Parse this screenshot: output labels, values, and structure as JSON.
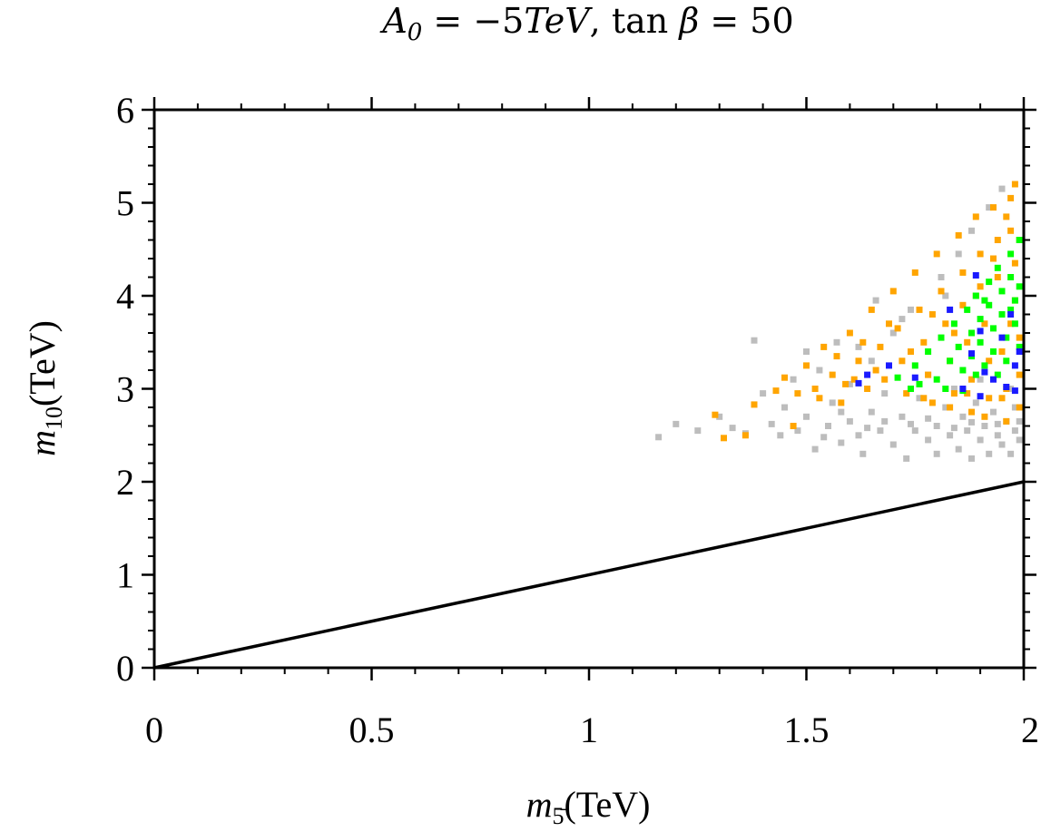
{
  "chart_data": {
    "type": "scatter",
    "title": "A_0 = −5TeV, tan β = 50",
    "title_parts": {
      "lhs": "A",
      "lhs_sub": "0",
      "eq1": " = −5",
      "unit": "TeV",
      "sep": ", ",
      "func": "tan",
      "beta": " β",
      "eq2": " = 50"
    },
    "xlabel": "m_5̄(TeV)",
    "xlabel_parts": {
      "var": "m",
      "sub": "5̄",
      "unit": "(TeV)"
    },
    "ylabel": "m_10(TeV)",
    "ylabel_parts": {
      "var": "m",
      "sub": "10",
      "unit": "(TeV)"
    },
    "xlim": [
      0,
      2
    ],
    "ylim": [
      0,
      6
    ],
    "x_ticks": [
      0,
      0.5,
      1,
      1.5,
      2
    ],
    "x_tick_labels": [
      "0",
      "0.5",
      "1",
      "1.5",
      "2"
    ],
    "y_ticks": [
      0,
      1,
      2,
      3,
      4,
      5,
      6
    ],
    "y_tick_labels": [
      "0",
      "1",
      "2",
      "3",
      "4",
      "5",
      "6"
    ],
    "grid": false,
    "line": {
      "name": "m10 = m5bar",
      "x": [
        0,
        2
      ],
      "y": [
        0,
        2
      ],
      "color": "#000000"
    },
    "series": [
      {
        "name": "gray",
        "color": "#bdbdbd",
        "points": [
          [
            1.16,
            2.48
          ],
          [
            1.2,
            2.62
          ],
          [
            1.25,
            2.55
          ],
          [
            1.3,
            2.7
          ],
          [
            1.33,
            2.58
          ],
          [
            1.36,
            2.52
          ],
          [
            1.38,
            3.52
          ],
          [
            1.4,
            2.95
          ],
          [
            1.42,
            2.62
          ],
          [
            1.45,
            2.8
          ],
          [
            1.47,
            3.1
          ],
          [
            1.48,
            2.55
          ],
          [
            1.5,
            2.7
          ],
          [
            1.52,
            2.35
          ],
          [
            1.53,
            3.2
          ],
          [
            1.55,
            2.6
          ],
          [
            1.56,
            2.85
          ],
          [
            1.58,
            2.42
          ],
          [
            1.6,
            3.05
          ],
          [
            1.6,
            2.65
          ],
          [
            1.62,
            2.5
          ],
          [
            1.63,
            2.3
          ],
          [
            1.65,
            3.3
          ],
          [
            1.65,
            2.75
          ],
          [
            1.67,
            2.55
          ],
          [
            1.68,
            2.95
          ],
          [
            1.7,
            2.4
          ],
          [
            1.7,
            3.6
          ],
          [
            1.72,
            2.7
          ],
          [
            1.73,
            2.25
          ],
          [
            1.74,
            3.85
          ],
          [
            1.75,
            2.55
          ],
          [
            1.76,
            2.9
          ],
          [
            1.78,
            2.45
          ],
          [
            1.78,
            3.15
          ],
          [
            1.8,
            2.6
          ],
          [
            1.8,
            2.3
          ],
          [
            1.81,
            4.2
          ],
          [
            1.82,
            2.8
          ],
          [
            1.83,
            2.5
          ],
          [
            1.84,
            3.0
          ],
          [
            1.85,
            2.35
          ],
          [
            1.85,
            4.45
          ],
          [
            1.86,
            2.7
          ],
          [
            1.87,
            2.55
          ],
          [
            1.88,
            2.25
          ],
          [
            1.88,
            4.7
          ],
          [
            1.89,
            2.85
          ],
          [
            1.9,
            2.45
          ],
          [
            1.9,
            3.1
          ],
          [
            1.91,
            2.6
          ],
          [
            1.92,
            2.3
          ],
          [
            1.92,
            4.95
          ],
          [
            1.93,
            2.75
          ],
          [
            1.94,
            2.5
          ],
          [
            1.95,
            5.15
          ],
          [
            1.95,
            2.4
          ],
          [
            1.96,
            2.65
          ],
          [
            1.97,
            2.3
          ],
          [
            1.97,
            3.0
          ],
          [
            1.98,
            2.55
          ],
          [
            1.98,
            2.8
          ],
          [
            1.99,
            2.45
          ],
          [
            1.99,
            2.65
          ],
          [
            1.44,
            2.5
          ],
          [
            1.54,
            2.48
          ],
          [
            1.64,
            2.58
          ],
          [
            1.74,
            2.62
          ],
          [
            1.84,
            2.58
          ],
          [
            1.94,
            2.62
          ],
          [
            1.58,
            2.75
          ],
          [
            1.68,
            2.65
          ],
          [
            1.78,
            2.68
          ],
          [
            1.88,
            2.64
          ],
          [
            1.62,
            3.45
          ],
          [
            1.72,
            3.75
          ],
          [
            1.82,
            4.0
          ],
          [
            1.5,
            3.4
          ],
          [
            1.57,
            3.5
          ],
          [
            1.66,
            3.95
          ]
        ]
      },
      {
        "name": "orange",
        "color": "#ffa500",
        "points": [
          [
            1.29,
            2.72
          ],
          [
            1.31,
            2.47
          ],
          [
            1.36,
            2.5
          ],
          [
            1.38,
            2.83
          ],
          [
            1.43,
            2.98
          ],
          [
            1.45,
            3.12
          ],
          [
            1.47,
            2.6
          ],
          [
            1.5,
            3.25
          ],
          [
            1.52,
            3.0
          ],
          [
            1.54,
            3.45
          ],
          [
            1.56,
            3.15
          ],
          [
            1.58,
            2.85
          ],
          [
            1.6,
            3.6
          ],
          [
            1.62,
            3.3
          ],
          [
            1.64,
            3.0
          ],
          [
            1.65,
            3.85
          ],
          [
            1.67,
            3.45
          ],
          [
            1.68,
            3.1
          ],
          [
            1.7,
            4.05
          ],
          [
            1.71,
            3.65
          ],
          [
            1.72,
            3.3
          ],
          [
            1.73,
            2.95
          ],
          [
            1.75,
            4.25
          ],
          [
            1.76,
            3.85
          ],
          [
            1.77,
            3.5
          ],
          [
            1.78,
            3.15
          ],
          [
            1.79,
            2.85
          ],
          [
            1.8,
            4.45
          ],
          [
            1.81,
            4.05
          ],
          [
            1.82,
            3.7
          ],
          [
            1.83,
            3.3
          ],
          [
            1.84,
            2.95
          ],
          [
            1.85,
            4.65
          ],
          [
            1.86,
            4.25
          ],
          [
            1.86,
            3.9
          ],
          [
            1.87,
            3.5
          ],
          [
            1.88,
            3.1
          ],
          [
            1.88,
            2.75
          ],
          [
            1.89,
            4.85
          ],
          [
            1.9,
            4.45
          ],
          [
            1.9,
            4.1
          ],
          [
            1.91,
            3.7
          ],
          [
            1.92,
            3.3
          ],
          [
            1.92,
            2.9
          ],
          [
            1.93,
            4.95
          ],
          [
            1.94,
            4.6
          ],
          [
            1.94,
            4.2
          ],
          [
            1.95,
            3.8
          ],
          [
            1.95,
            3.4
          ],
          [
            1.96,
            3.0
          ],
          [
            1.96,
            2.65
          ],
          [
            1.97,
            5.05
          ],
          [
            1.97,
            4.7
          ],
          [
            1.98,
            4.35
          ],
          [
            1.98,
            3.95
          ],
          [
            1.99,
            3.55
          ],
          [
            1.99,
            3.15
          ],
          [
            1.99,
            2.8
          ],
          [
            1.98,
            5.2
          ],
          [
            1.96,
            4.85
          ],
          [
            1.93,
            4.4
          ],
          [
            1.89,
            4.0
          ],
          [
            1.84,
            3.6
          ],
          [
            1.79,
            3.8
          ],
          [
            1.74,
            3.4
          ],
          [
            1.69,
            3.7
          ],
          [
            1.66,
            3.2
          ],
          [
            1.61,
            3.1
          ],
          [
            1.57,
            3.35
          ],
          [
            1.53,
            2.9
          ],
          [
            1.48,
            2.95
          ],
          [
            1.87,
            2.95
          ],
          [
            1.91,
            2.7
          ],
          [
            1.95,
            2.9
          ],
          [
            1.83,
            2.8
          ],
          [
            1.77,
            2.9
          ],
          [
            1.63,
            3.5
          ],
          [
            1.59,
            3.05
          ],
          [
            1.97,
            3.7
          ],
          [
            1.99,
            4.6
          ]
        ]
      },
      {
        "name": "green",
        "color": "#00ff00",
        "points": [
          [
            1.71,
            3.12
          ],
          [
            1.75,
            3.25
          ],
          [
            1.78,
            3.4
          ],
          [
            1.8,
            3.1
          ],
          [
            1.81,
            3.55
          ],
          [
            1.83,
            3.3
          ],
          [
            1.84,
            3.7
          ],
          [
            1.85,
            3.45
          ],
          [
            1.86,
            3.2
          ],
          [
            1.87,
            3.85
          ],
          [
            1.88,
            3.6
          ],
          [
            1.88,
            3.35
          ],
          [
            1.89,
            4.0
          ],
          [
            1.9,
            3.75
          ],
          [
            1.9,
            3.5
          ],
          [
            1.91,
            3.25
          ],
          [
            1.92,
            4.15
          ],
          [
            1.92,
            3.9
          ],
          [
            1.93,
            3.65
          ],
          [
            1.93,
            3.4
          ],
          [
            1.94,
            4.3
          ],
          [
            1.95,
            4.05
          ],
          [
            1.95,
            3.8
          ],
          [
            1.96,
            3.55
          ],
          [
            1.96,
            3.3
          ],
          [
            1.97,
            4.45
          ],
          [
            1.97,
            4.2
          ],
          [
            1.98,
            3.95
          ],
          [
            1.98,
            3.7
          ],
          [
            1.99,
            3.45
          ],
          [
            1.99,
            4.6
          ],
          [
            1.99,
            4.1
          ],
          [
            1.82,
            3.0
          ],
          [
            1.86,
            2.98
          ],
          [
            1.94,
            3.15
          ],
          [
            1.76,
            3.05
          ],
          [
            1.74,
            3.0
          ],
          [
            1.91,
            3.95
          ],
          [
            1.89,
            3.15
          ],
          [
            1.97,
            3.85
          ]
        ]
      },
      {
        "name": "blue",
        "color": "#1a1aff",
        "points": [
          [
            1.62,
            3.06
          ],
          [
            1.64,
            3.15
          ],
          [
            1.69,
            3.25
          ],
          [
            1.75,
            3.12
          ],
          [
            1.83,
            3.85
          ],
          [
            1.86,
            3.0
          ],
          [
            1.88,
            3.38
          ],
          [
            1.89,
            4.22
          ],
          [
            1.9,
            3.62
          ],
          [
            1.9,
            2.92
          ],
          [
            1.91,
            3.18
          ],
          [
            1.93,
            3.1
          ],
          [
            1.95,
            3.55
          ],
          [
            1.96,
            3.02
          ],
          [
            1.97,
            3.8
          ],
          [
            1.98,
            3.25
          ],
          [
            1.99,
            3.4
          ],
          [
            1.98,
            2.98
          ]
        ]
      }
    ]
  }
}
